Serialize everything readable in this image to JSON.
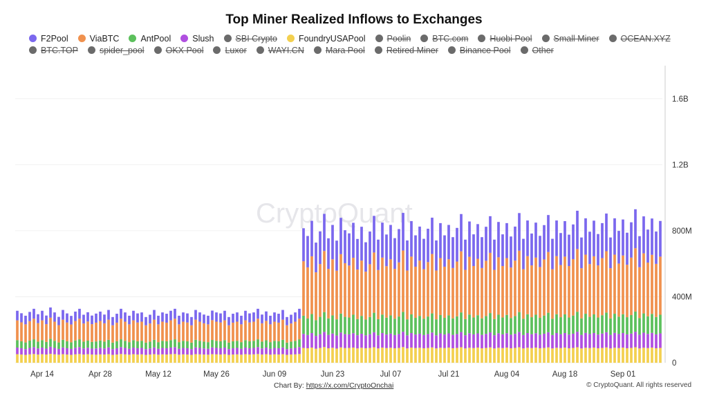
{
  "chart_data": {
    "type": "bar",
    "stacked": true,
    "title": "Top Miner Realized Inflows to Exchanges",
    "legend": [
      {
        "name": "F2Pool",
        "color": "#7b68ee",
        "active": true
      },
      {
        "name": "ViaBTC",
        "color": "#f0914e",
        "active": true
      },
      {
        "name": "AntPool",
        "color": "#5cc05c",
        "active": true
      },
      {
        "name": "Slush",
        "color": "#b04fe0",
        "active": true
      },
      {
        "name": "SBI Crypto",
        "color": "#6b6b6b",
        "active": false
      },
      {
        "name": "FoundryUSAPool",
        "color": "#f3d04f",
        "active": true
      },
      {
        "name": "Poolin",
        "color": "#6b6b6b",
        "active": false
      },
      {
        "name": "BTC.com",
        "color": "#6b6b6b",
        "active": false
      },
      {
        "name": "Huobi Pool",
        "color": "#6b6b6b",
        "active": false
      },
      {
        "name": "Small Miner",
        "color": "#6b6b6b",
        "active": false
      },
      {
        "name": "OCEAN.XYZ",
        "color": "#6b6b6b",
        "active": false
      },
      {
        "name": "BTC.TOP",
        "color": "#6b6b6b",
        "active": false
      },
      {
        "name": "spider_pool",
        "color": "#6b6b6b",
        "active": false
      },
      {
        "name": "OKX Pool",
        "color": "#6b6b6b",
        "active": false
      },
      {
        "name": "Luxor",
        "color": "#6b6b6b",
        "active": false
      },
      {
        "name": "WAYI.CN",
        "color": "#6b6b6b",
        "active": false
      },
      {
        "name": "Mara Pool",
        "color": "#6b6b6b",
        "active": false
      },
      {
        "name": "Retired Miner",
        "color": "#6b6b6b",
        "active": false
      },
      {
        "name": "Binance Pool",
        "color": "#6b6b6b",
        "active": false
      },
      {
        "name": "Other",
        "color": "#6b6b6b",
        "active": false
      }
    ],
    "x_tick_labels": [
      "Apr 14",
      "Apr 28",
      "May 12",
      "May 26",
      "Jun 09",
      "Jun 23",
      "Jul 07",
      "Jul 21",
      "Aug 04",
      "Aug 18",
      "Sep 01"
    ],
    "y_tick_labels": [
      "0",
      "400M",
      "800M",
      "1.2B",
      "1.6B"
    ],
    "y_tick_values": [
      0,
      400,
      800,
      1200,
      1600
    ],
    "y_unit_multiplier": 1000000,
    "ylim": [
      0,
      1800
    ],
    "y_axis_position": "right",
    "grid": true,
    "legend_placement": "top",
    "date_range": [
      "2024-04-08",
      "2024-09-10"
    ],
    "stack_order_bottom_to_top": [
      "FoundryUSAPool",
      "Slush",
      "AntPool",
      "ViaBTC",
      "F2Pool"
    ],
    "series": [
      {
        "name": "FoundryUSAPool",
        "values": [
          52,
          50,
          48,
          51,
          53,
          50,
          52,
          50,
          54,
          51,
          49,
          52,
          50,
          48,
          51,
          53,
          50,
          52,
          50,
          49,
          51,
          50,
          52,
          48,
          50,
          53,
          51,
          49,
          52,
          50,
          51,
          48,
          50,
          52,
          49,
          51,
          50,
          52,
          53,
          49,
          51,
          50,
          48,
          52,
          51,
          50,
          49,
          52,
          51,
          50,
          52,
          48,
          50,
          51,
          49,
          52,
          50,
          51,
          53,
          50,
          52,
          49,
          51,
          50,
          52,
          48,
          50,
          51,
          53,
          90,
          88,
          92,
          85,
          90,
          95,
          88,
          91,
          86,
          93,
          89,
          90,
          92,
          87,
          91,
          88,
          90,
          94,
          87,
          92,
          89,
          91,
          88,
          90,
          95,
          87,
          92,
          89,
          91,
          88,
          90,
          93,
          87,
          91,
          89,
          92,
          88,
          90,
          94,
          87,
          91,
          89,
          92,
          88,
          90,
          93,
          87,
          91,
          89,
          92,
          88,
          90,
          94,
          87,
          91,
          89,
          92,
          88,
          90,
          93,
          87,
          91,
          89,
          92,
          88,
          90,
          94,
          87,
          91,
          89,
          92,
          88,
          90,
          93,
          87,
          91,
          89,
          92,
          88,
          90,
          94,
          87,
          91,
          89,
          92,
          88,
          90
        ]
      },
      {
        "name": "Slush",
        "values": [
          40,
          38,
          35,
          39,
          42,
          37,
          40,
          36,
          43,
          39,
          35,
          41,
          38,
          36,
          40,
          42,
          37,
          39,
          36,
          38,
          40,
          37,
          41,
          35,
          38,
          42,
          39,
          36,
          40,
          38,
          39,
          35,
          37,
          41,
          36,
          39,
          38,
          40,
          42,
          36,
          39,
          38,
          35,
          41,
          39,
          37,
          36,
          41,
          39,
          38,
          40,
          35,
          38,
          39,
          36,
          40,
          38,
          39,
          42,
          37,
          40,
          36,
          39,
          38,
          41,
          35,
          37,
          39,
          42,
          85,
          80,
          88,
          78,
          83,
          92,
          81,
          86,
          79,
          90,
          84,
          82,
          87,
          80,
          85,
          78,
          83,
          91,
          79,
          88,
          82,
          86,
          80,
          84,
          93,
          79,
          88,
          82,
          85,
          80,
          84,
          90,
          79,
          87,
          82,
          86,
          81,
          84,
          92,
          80,
          88,
          83,
          86,
          81,
          85,
          91,
          80,
          88,
          83,
          87,
          82,
          85,
          93,
          81,
          89,
          84,
          87,
          82,
          86,
          92,
          81,
          89,
          84,
          88,
          83,
          86,
          94,
          82,
          90,
          85,
          88,
          83,
          87,
          92,
          82,
          90,
          85,
          88,
          84,
          87,
          94,
          83,
          91,
          86,
          89,
          84,
          88
        ]
      },
      {
        "name": "AntPool",
        "values": [
          45,
          42,
          40,
          44,
          47,
          41,
          45,
          40,
          48,
          43,
          39,
          46,
          42,
          40,
          44,
          47,
          41,
          43,
          40,
          42,
          44,
          41,
          46,
          39,
          42,
          47,
          43,
          40,
          45,
          42,
          43,
          39,
          41,
          46,
          40,
          43,
          42,
          45,
          47,
          40,
          43,
          42,
          39,
          46,
          43,
          41,
          40,
          45,
          43,
          42,
          45,
          39,
          42,
          43,
          40,
          45,
          42,
          43,
          47,
          41,
          44,
          40,
          43,
          42,
          46,
          39,
          41,
          43,
          47,
          110,
          100,
          115,
          95,
          105,
          120,
          100,
          110,
          98,
          115,
          105,
          102,
          112,
          98,
          108,
          96,
          104,
          118,
          98,
          112,
          102,
          110,
          99,
          106,
          120,
          97,
          113,
          101,
          108,
          99,
          106,
          116,
          97,
          111,
          101,
          109,
          100,
          107,
          119,
          98,
          113,
          102,
          110,
          100,
          108,
          117,
          98,
          112,
          102,
          111,
          101,
          108,
          120,
          99,
          114,
          103,
          112,
          102,
          110,
          118,
          99,
          114,
          103,
          113,
          103,
          110,
          121,
          100,
          116,
          104,
          113,
          103,
          111,
          119,
          100,
          116,
          105,
          114,
          104,
          112,
          122,
          101,
          117,
          106,
          115,
          105,
          113
        ]
      },
      {
        "name": "ViaBTC",
        "values": [
          120,
          115,
          110,
          118,
          125,
          112,
          120,
          108,
          128,
          116,
          105,
          122,
          114,
          108,
          118,
          125,
          110,
          116,
          108,
          114,
          118,
          111,
          122,
          105,
          113,
          125,
          116,
          108,
          120,
          114,
          116,
          105,
          110,
          122,
          108,
          116,
          113,
          120,
          125,
          108,
          116,
          114,
          105,
          122,
          116,
          111,
          108,
          120,
          116,
          114,
          120,
          105,
          113,
          116,
          108,
          120,
          114,
          116,
          125,
          111,
          118,
          108,
          116,
          113,
          122,
          105,
          110,
          116,
          125,
          330,
          310,
          350,
          290,
          320,
          370,
          300,
          340,
          295,
          360,
          325,
          315,
          345,
          300,
          335,
          290,
          320,
          365,
          298,
          345,
          312,
          340,
          302,
          328,
          372,
          296,
          350,
          310,
          335,
          300,
          330,
          360,
          296,
          345,
          310,
          340,
          305,
          332,
          370,
          298,
          350,
          312,
          342,
          305,
          335,
          365,
          298,
          348,
          312,
          344,
          306,
          336,
          372,
          300,
          352,
          314,
          346,
          308,
          340,
          368,
          300,
          352,
          316,
          350,
          312,
          342,
          380,
          304,
          358,
          320,
          352,
          316,
          346,
          372,
          304,
          358,
          322,
          356,
          318,
          348,
          384,
          308,
          364,
          326,
          358,
          322,
          352
        ]
      },
      {
        "name": "F2Pool",
        "values": [
          58,
          55,
          52,
          56,
          60,
          54,
          58,
          52,
          62,
          56,
          50,
          59,
          55,
          52,
          57,
          60,
          53,
          56,
          52,
          55,
          57,
          53,
          59,
          50,
          54,
          60,
          56,
          52,
          58,
          55,
          56,
          50,
          53,
          59,
          52,
          56,
          54,
          58,
          60,
          52,
          56,
          55,
          50,
          59,
          56,
          53,
          52,
          58,
          56,
          55,
          58,
          50,
          54,
          56,
          52,
          58,
          55,
          56,
          60,
          53,
          57,
          52,
          56,
          54,
          59,
          50,
          53,
          56,
          60,
          200,
          190,
          215,
          180,
          198,
          225,
          185,
          208,
          182,
          220,
          200,
          195,
          212,
          185,
          205,
          178,
          198,
          222,
          184,
          212,
          192,
          208,
          186,
          202,
          228,
          182,
          215,
          190,
          206,
          184,
          202,
          220,
          182,
          212,
          190,
          208,
          187,
          204,
          226,
          183,
          214,
          192,
          210,
          187,
          206,
          222,
          183,
          214,
          192,
          212,
          188,
          206,
          228,
          184,
          216,
          193,
          212,
          189,
          208,
          224,
          184,
          216,
          194,
          215,
          190,
          210,
          232,
          186,
          220,
          196,
          216,
          190,
          212,
          228,
          186,
          220,
          198,
          218,
          194,
          214,
          236,
          188,
          224,
          200,
          220,
          196,
          216
        ]
      }
    ]
  },
  "footer": {
    "credit_prefix": "Chart By:",
    "credit_link": "https://x.com/CryptoOnchai",
    "copyright": "© CryptoQuant. All rights reserved"
  },
  "watermark": "CryptoQuant"
}
